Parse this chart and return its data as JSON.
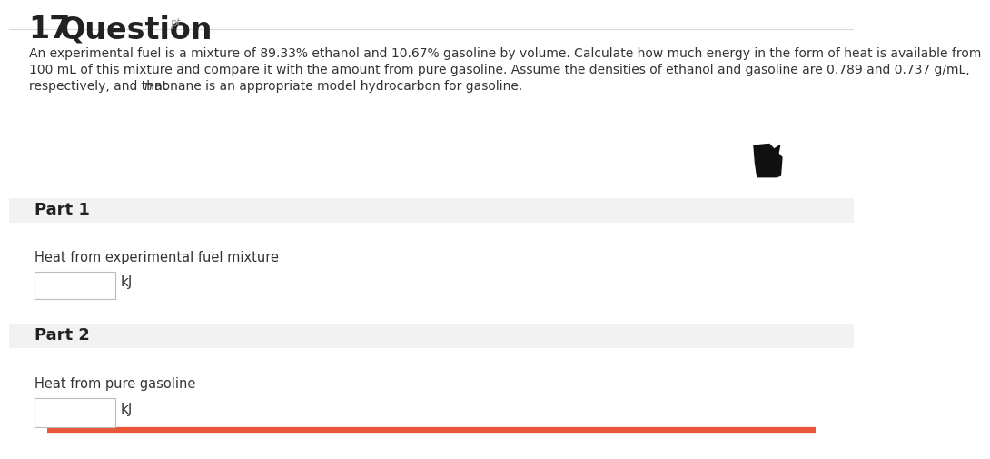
{
  "question_number": "17",
  "question_label": "Question",
  "question_suffix": "pt.",
  "body_text_line1": "An experimental fuel is a mixture of 89.33% ethanol and 10.67% gasoline by volume. Calculate how much energy in the form of heat is available from",
  "body_text_line2": "100 mL of this mixture and compare it with the amount from pure gasoline. Assume the densities of ethanol and gasoline are 0.789 and 0.737 g/mL,",
  "body_text_line3_pre": "respectively, and that ",
  "body_text_line3_italic": "n",
  "body_text_line3_post": "-nonane is an appropriate model hydrocarbon for gasoline.",
  "part1_label": "Part 1",
  "part1_description": "Heat from experimental fuel mixture",
  "part1_unit": "kJ",
  "part2_label": "Part 2",
  "part2_description": "Heat from pure gasoline",
  "part2_unit": "kJ",
  "bg_color": "#ffffff",
  "part_bg_color": "#f2f2f2",
  "orange_bar_color": "#e8573a",
  "text_color_dark": "#222222",
  "text_color_body": "#333333",
  "text_color_blue": "#5b7fa6",
  "separator_color": "#d8d8d8",
  "input_box_color": "#ffffff",
  "input_box_border": "#bbbbbb",
  "arrow_color": "#111111",
  "gray_line_color": "#cccccc"
}
